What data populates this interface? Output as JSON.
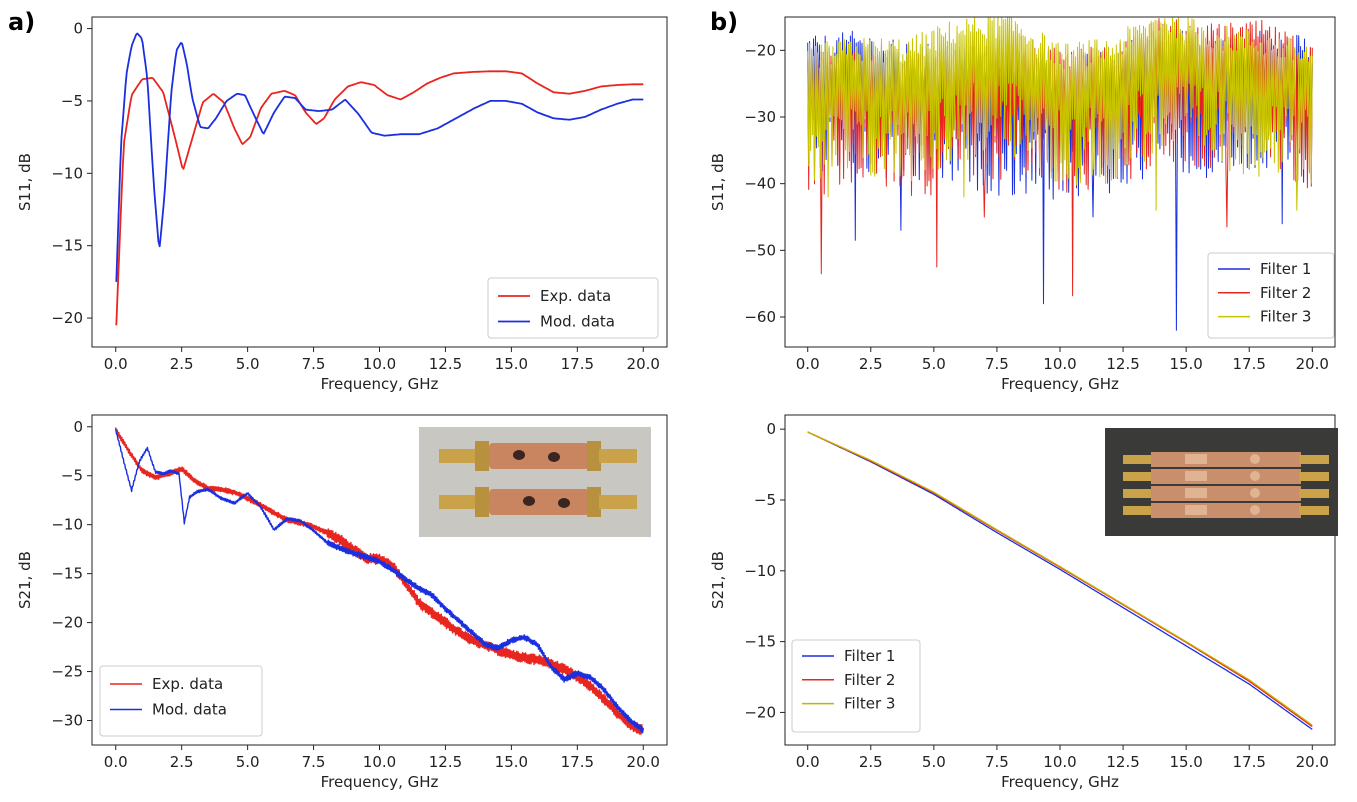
{
  "panel_labels": [
    "a)",
    "b)"
  ],
  "chart_data": [
    {
      "id": "a_top",
      "type": "line",
      "xlabel": "Frequency, GHz",
      "ylabel": "S11, dB",
      "xlim": [
        -0.9,
        20.9
      ],
      "ylim": [
        -22,
        0.8
      ],
      "xticks": [
        "0.0",
        "2.5",
        "5.0",
        "7.5",
        "10.0",
        "12.5",
        "15.0",
        "17.5",
        "20.0"
      ],
      "xtick_values": [
        0,
        2.5,
        5,
        7.5,
        10,
        12.5,
        15,
        17.5,
        20
      ],
      "yticks": [
        "0",
        "−5",
        "−10",
        "−15",
        "−20"
      ],
      "ytick_values": [
        0,
        -5,
        -10,
        -15,
        -20
      ],
      "legend_position": "lower-right",
      "grid": false,
      "series": [
        {
          "name": "Exp. data",
          "color": "#e8251f",
          "width": 1.8,
          "x": [
            0.02,
            0.3,
            0.6,
            1.0,
            1.4,
            1.8,
            2.2,
            2.55,
            2.9,
            3.3,
            3.7,
            4.1,
            4.5,
            4.8,
            5.1,
            5.5,
            5.9,
            6.4,
            6.8,
            7.2,
            7.6,
            7.9,
            8.3,
            8.8,
            9.3,
            9.8,
            10.3,
            10.8,
            11.3,
            11.8,
            12.3,
            12.8,
            13.5,
            14.2,
            14.8,
            15.4,
            16.0,
            16.6,
            17.2,
            17.8,
            18.4,
            19.0,
            19.6,
            20.0
          ],
          "y": [
            -20.5,
            -8,
            -4.6,
            -3.5,
            -3.4,
            -4.4,
            -7.2,
            -9.8,
            -7.6,
            -5.1,
            -4.5,
            -5.1,
            -6.9,
            -8.0,
            -7.5,
            -5.5,
            -4.5,
            -4.3,
            -4.6,
            -5.8,
            -6.6,
            -6.2,
            -4.9,
            -4.0,
            -3.7,
            -3.9,
            -4.6,
            -4.9,
            -4.4,
            -3.8,
            -3.4,
            -3.1,
            -3.0,
            -2.95,
            -2.95,
            -3.1,
            -3.8,
            -4.4,
            -4.5,
            -4.3,
            -4.0,
            -3.9,
            -3.85,
            -3.85
          ]
        },
        {
          "name": "Mod. data",
          "color": "#1a2fe0",
          "width": 1.8,
          "x": [
            0.02,
            0.2,
            0.4,
            0.6,
            0.8,
            1.0,
            1.2,
            1.45,
            1.65,
            1.85,
            2.1,
            2.3,
            2.5,
            2.7,
            2.9,
            3.2,
            3.5,
            3.8,
            4.2,
            4.6,
            4.9,
            5.2,
            5.6,
            6.0,
            6.4,
            6.8,
            7.2,
            7.7,
            8.2,
            8.7,
            9.2,
            9.7,
            10.2,
            10.8,
            11.5,
            12.2,
            12.9,
            13.6,
            14.2,
            14.8,
            15.4,
            16.0,
            16.6,
            17.2,
            17.8,
            18.4,
            19.0,
            19.6,
            20.0
          ],
          "y": [
            -17.5,
            -8,
            -3.2,
            -1.2,
            -0.3,
            -0.7,
            -3.5,
            -11,
            -15.4,
            -11.5,
            -4.5,
            -1.5,
            -0.9,
            -2.5,
            -4.8,
            -6.8,
            -6.9,
            -6.2,
            -5.0,
            -4.5,
            -4.6,
            -5.8,
            -7.3,
            -5.8,
            -4.7,
            -4.8,
            -5.6,
            -5.7,
            -5.6,
            -4.9,
            -5.9,
            -7.2,
            -7.4,
            -7.3,
            -7.3,
            -6.9,
            -6.2,
            -5.5,
            -5.0,
            -5.0,
            -5.2,
            -5.8,
            -6.2,
            -6.3,
            -6.1,
            -5.6,
            -5.2,
            -4.9,
            -4.9
          ]
        }
      ]
    },
    {
      "id": "a_bottom",
      "type": "line",
      "xlabel": "Frequency, GHz",
      "ylabel": "S21, dB",
      "xlim": [
        -0.9,
        20.9
      ],
      "ylim": [
        -32.5,
        1.2
      ],
      "xticks": [
        "0.0",
        "2.5",
        "5.0",
        "7.5",
        "10.0",
        "12.5",
        "15.0",
        "17.5",
        "20.0"
      ],
      "xtick_values": [
        0,
        2.5,
        5,
        7.5,
        10,
        12.5,
        15,
        17.5,
        20
      ],
      "yticks": [
        "0",
        "−5",
        "−10",
        "−15",
        "−20",
        "−25",
        "−30"
      ],
      "ytick_values": [
        0,
        -5,
        -10,
        -15,
        -20,
        -25,
        -30
      ],
      "legend_position": "lower-left",
      "grid": false,
      "inset_photo": "coaxial filter photo",
      "series": [
        {
          "name": "Exp. data",
          "color": "#e8251f",
          "width": 1.4,
          "x": [
            0,
            0.5,
            1.0,
            1.5,
            2.0,
            2.5,
            3.0,
            3.5,
            4.0,
            4.5,
            5.0,
            5.5,
            6.0,
            6.5,
            7.0,
            7.5,
            8.0,
            8.5,
            9.0,
            9.5,
            10.0,
            10.5,
            11.0,
            11.5,
            12.0,
            12.5,
            13.0,
            13.5,
            14.0,
            14.5,
            15.0,
            15.5,
            16.0,
            16.5,
            17.0,
            17.5,
            18.0,
            18.5,
            19.0,
            19.5,
            20.0
          ],
          "y": [
            -0.3,
            -2.5,
            -4.5,
            -5.2,
            -4.8,
            -4.3,
            -5.5,
            -6.3,
            -6.4,
            -6.7,
            -7.3,
            -8.0,
            -8.8,
            -9.5,
            -9.8,
            -10.2,
            -10.8,
            -11.5,
            -12.5,
            -13.5,
            -13.5,
            -14.2,
            -16.0,
            -18.0,
            -19.0,
            -20.0,
            -21.0,
            -21.8,
            -22.3,
            -22.8,
            -23.3,
            -23.6,
            -23.8,
            -24.2,
            -24.8,
            -25.5,
            -26.5,
            -27.8,
            -29.2,
            -30.5,
            -31.0
          ],
          "noise": 0.55
        },
        {
          "name": "Mod. data",
          "color": "#1a2fe0",
          "width": 1.4,
          "x": [
            0,
            0.3,
            0.6,
            0.9,
            1.2,
            1.5,
            1.8,
            2.1,
            2.4,
            2.6,
            2.8,
            3.1,
            3.5,
            4.0,
            4.5,
            5.0,
            5.5,
            6.0,
            6.5,
            7.0,
            7.5,
            8.0,
            8.5,
            9.0,
            9.5,
            10.0,
            10.5,
            11.0,
            11.5,
            12.0,
            12.5,
            13.0,
            13.5,
            14.0,
            14.5,
            15.0,
            15.5,
            16.0,
            16.5,
            17.0,
            17.5,
            18.0,
            18.5,
            19.0,
            19.5,
            20.0
          ],
          "y": [
            -0.3,
            -3.5,
            -6.5,
            -3.5,
            -2.2,
            -4.6,
            -4.8,
            -4.5,
            -4.8,
            -9.8,
            -7.2,
            -6.6,
            -6.4,
            -7.3,
            -7.8,
            -6.8,
            -8.2,
            -10.5,
            -9.4,
            -9.6,
            -10.6,
            -11.8,
            -12.4,
            -12.9,
            -13.3,
            -13.8,
            -14.6,
            -15.6,
            -16.5,
            -17.2,
            -18.6,
            -19.8,
            -21.0,
            -22.2,
            -22.6,
            -21.8,
            -21.5,
            -22.3,
            -24.5,
            -25.8,
            -25.2,
            -25.6,
            -26.8,
            -28.5,
            -30.0,
            -31.0
          ],
          "noise": 0.3
        }
      ]
    },
    {
      "id": "b_top",
      "type": "line",
      "xlabel": "Frequency, GHz",
      "ylabel": "S11, dB",
      "xlim": [
        -0.9,
        20.9
      ],
      "ylim": [
        -64.5,
        -15
      ],
      "xticks": [
        "0.0",
        "2.5",
        "5.0",
        "7.5",
        "10.0",
        "12.5",
        "15.0",
        "17.5",
        "20.0"
      ],
      "xtick_values": [
        0,
        2.5,
        5,
        7.5,
        10,
        12.5,
        15,
        17.5,
        20
      ],
      "yticks": [
        "−20",
        "−30",
        "−40",
        "−50",
        "−60"
      ],
      "ytick_values": [
        -20,
        -30,
        -40,
        -50,
        -60
      ],
      "legend_position": "lower-right",
      "grid": false,
      "series": [
        {
          "name": "Filter 1",
          "color": "#1a2fe0",
          "width": 1.0,
          "env_x": [
            0,
            2,
            4,
            6,
            8,
            10,
            12,
            14,
            16,
            18,
            20
          ],
          "env_y": [
            -22,
            -21,
            -23,
            -23,
            -24,
            -25,
            -24,
            -20,
            -22,
            -21,
            -22
          ],
          "dips": [
            [
              9.35,
              -58
            ],
            [
              14.6,
              -62
            ],
            [
              1.9,
              -48.5
            ],
            [
              3.7,
              -47
            ],
            [
              11.3,
              -45
            ],
            [
              18.8,
              -46
            ]
          ]
        },
        {
          "name": "Filter 2",
          "color": "#e8251f",
          "width": 1.0,
          "env_x": [
            0,
            2,
            4,
            6,
            8,
            10,
            12,
            14,
            16,
            18,
            20
          ],
          "env_y": [
            -24,
            -23,
            -24,
            -24,
            -21,
            -24,
            -23,
            -19,
            -20,
            -19.5,
            -23
          ],
          "dips": [
            [
              0.55,
              -53.5
            ],
            [
              5.1,
              -52.5
            ],
            [
              10.5,
              -56.8
            ],
            [
              16.6,
              -46.5
            ],
            [
              7.0,
              -45
            ]
          ]
        },
        {
          "name": "Filter 3",
          "color": "#c8c400",
          "width": 1.0,
          "env_x": [
            0,
            2,
            4,
            6,
            8,
            10,
            12,
            14,
            16,
            18,
            20
          ],
          "env_y": [
            -23,
            -22,
            -22,
            -19,
            -18,
            -23,
            -22,
            -17.5,
            -20,
            -21,
            -23
          ],
          "dips": [
            [
              0.8,
              -42
            ],
            [
              6.2,
              -42
            ],
            [
              13.8,
              -44
            ],
            [
              19.4,
              -44
            ]
          ]
        }
      ]
    },
    {
      "id": "b_bottom",
      "type": "line",
      "xlabel": "Frequency, GHz",
      "ylabel": "S21, dB",
      "xlim": [
        -0.9,
        20.9
      ],
      "ylim": [
        -22.3,
        1.0
      ],
      "xticks": [
        "0.0",
        "2.5",
        "5.0",
        "7.5",
        "10.0",
        "12.5",
        "15.0",
        "17.5",
        "20.0"
      ],
      "xtick_values": [
        0,
        2.5,
        5,
        7.5,
        10,
        12.5,
        15,
        17.5,
        20
      ],
      "yticks": [
        "0",
        "−5",
        "−10",
        "−15",
        "−20"
      ],
      "ytick_values": [
        0,
        -5,
        -10,
        -15,
        -20
      ],
      "legend_position": "lower-left",
      "grid": false,
      "inset_photo": "photo of filters labeled FMN",
      "series": [
        {
          "name": "Filter 1",
          "color": "#1a2fe0",
          "width": 1.3,
          "x": [
            0,
            2.5,
            5,
            7.5,
            10,
            12.5,
            15,
            17.5,
            20
          ],
          "y": [
            -0.2,
            -2.3,
            -4.6,
            -7.3,
            -9.9,
            -12.6,
            -15.3,
            -18.0,
            -21.2
          ]
        },
        {
          "name": "Filter 2",
          "color": "#e8251f",
          "width": 1.3,
          "x": [
            0,
            2.5,
            5,
            7.5,
            10,
            12.5,
            15,
            17.5,
            20
          ],
          "y": [
            -0.2,
            -2.25,
            -4.5,
            -7.15,
            -9.75,
            -12.4,
            -15.05,
            -17.8,
            -21.0
          ]
        },
        {
          "name": "Filter 3",
          "color": "#c8b400",
          "width": 1.3,
          "x": [
            0,
            2.5,
            5,
            7.5,
            10,
            12.5,
            15,
            17.5,
            20
          ],
          "y": [
            -0.2,
            -2.2,
            -4.45,
            -7.1,
            -9.7,
            -12.35,
            -15.0,
            -17.7,
            -20.9
          ]
        }
      ]
    }
  ]
}
